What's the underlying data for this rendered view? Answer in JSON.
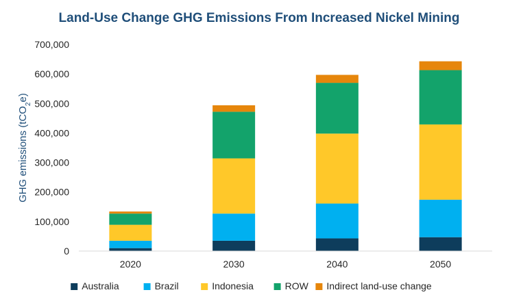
{
  "chart_data": {
    "type": "bar",
    "stacked": true,
    "title": "Land-Use Change GHG Emissions From Increased Nickel Mining",
    "xlabel": "",
    "ylabel": "GHG emissions (tCO",
    "ylabel_sub": "2",
    "ylabel_end": "e)",
    "ylim": [
      0,
      700000
    ],
    "yticks": [
      0,
      100000,
      200000,
      300000,
      400000,
      500000,
      600000,
      700000
    ],
    "ytick_labels": [
      "0",
      "100,000",
      "200,000",
      "300,000",
      "400,000",
      "500,000",
      "600,000",
      "700,000"
    ],
    "categories": [
      "2020",
      "2030",
      "2040",
      "2050"
    ],
    "grid": false,
    "legend_position": "bottom",
    "series": [
      {
        "name": "Australia",
        "color": "#0e3d5c",
        "values": [
          10000,
          35000,
          43000,
          47000
        ]
      },
      {
        "name": "Brazil",
        "color": "#00b0f0",
        "values": [
          25000,
          92000,
          118000,
          127000
        ]
      },
      {
        "name": "Indonesia",
        "color": "#ffc829",
        "values": [
          54000,
          187000,
          237000,
          255000
        ]
      },
      {
        "name": "ROW",
        "color": "#13a36b",
        "values": [
          38000,
          158000,
          172000,
          184000
        ]
      },
      {
        "name": "Indirect land-use change",
        "color": "#e6860b",
        "values": [
          7000,
          22000,
          27000,
          30000
        ]
      }
    ]
  }
}
